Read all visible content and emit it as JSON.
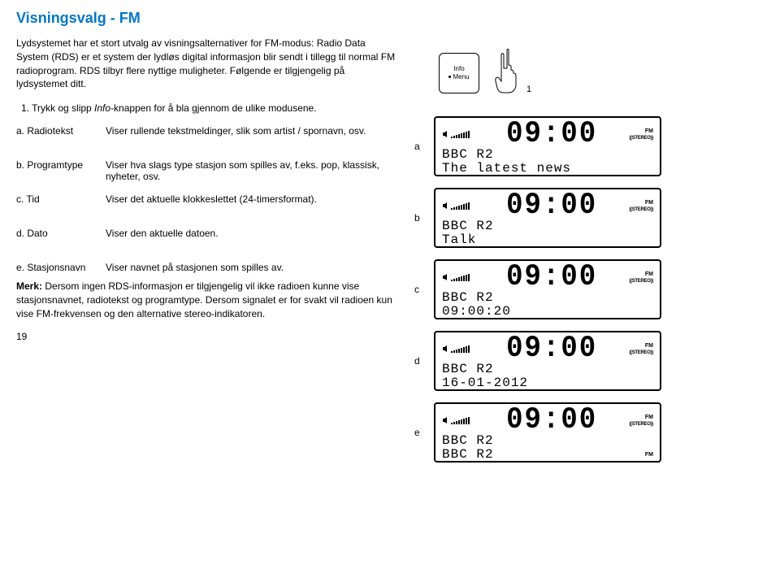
{
  "title": "Visningsvalg - FM",
  "intro": "Lydsystemet har et stort utvalg av visningsalternativer for FM-modus:\nRadio Data System (RDS) er et system der lydløs digital informasjon blir sendt i tillegg til normal FM radioprogram. RDS tilbyr flere nyttige muligheter. Følgende er tilgjengelig på lydsystemet ditt.",
  "step1_pre": "1.   Trykk og slipp ",
  "step1_em": "Info",
  "step1_post": "-knappen for å bla gjennom de ulike modusene.",
  "defs": [
    {
      "label": "a. Radiotekst",
      "text": "Viser rullende tekstmeldinger, slik som artist / spornavn, osv."
    },
    {
      "label": "b. Programtype",
      "text": "Viser hva slags type stasjon som spilles av, f.eks. pop, klassisk, nyheter, osv."
    },
    {
      "label": "c. Tid",
      "text": "Viser det aktuelle klokkeslettet (24-timersformat)."
    },
    {
      "label": "d. Dato",
      "text": "Viser den aktuelle datoen."
    },
    {
      "label": "e. Stasjonsnavn",
      "text": "Viser navnet på stasjonen som spilles av."
    }
  ],
  "note_label": "Merk:",
  "note_text": " Dersom ingen RDS-informasjon er tilgjengelig vil ikke radioen kunne vise stasjonsnavnet, radiotekst og programtype. Dersom signalet er for svakt vil radioen kun vise FM-frekvensen og den alternative stereo-indikatoren.",
  "page_num": "19",
  "button": {
    "line1": "Info",
    "line2": "Menu"
  },
  "hand_num": "1",
  "lcd_time": "09:00",
  "lcd_fm": "FM",
  "lcd_stereo": "((STEREO))",
  "displays": [
    {
      "letter": "a",
      "line1": "BBC R2",
      "line2": "The latest news"
    },
    {
      "letter": "b",
      "line1": "BBC R2",
      "line2": "Talk"
    },
    {
      "letter": "c",
      "line1": "BBC R2",
      "line2": "09:00:20"
    },
    {
      "letter": "d",
      "line1": "BBC R2",
      "line2": "16-01-2012"
    },
    {
      "letter": "e",
      "line1": "BBC R2",
      "line2": "BBC R2",
      "fm_on_line2": true
    }
  ]
}
